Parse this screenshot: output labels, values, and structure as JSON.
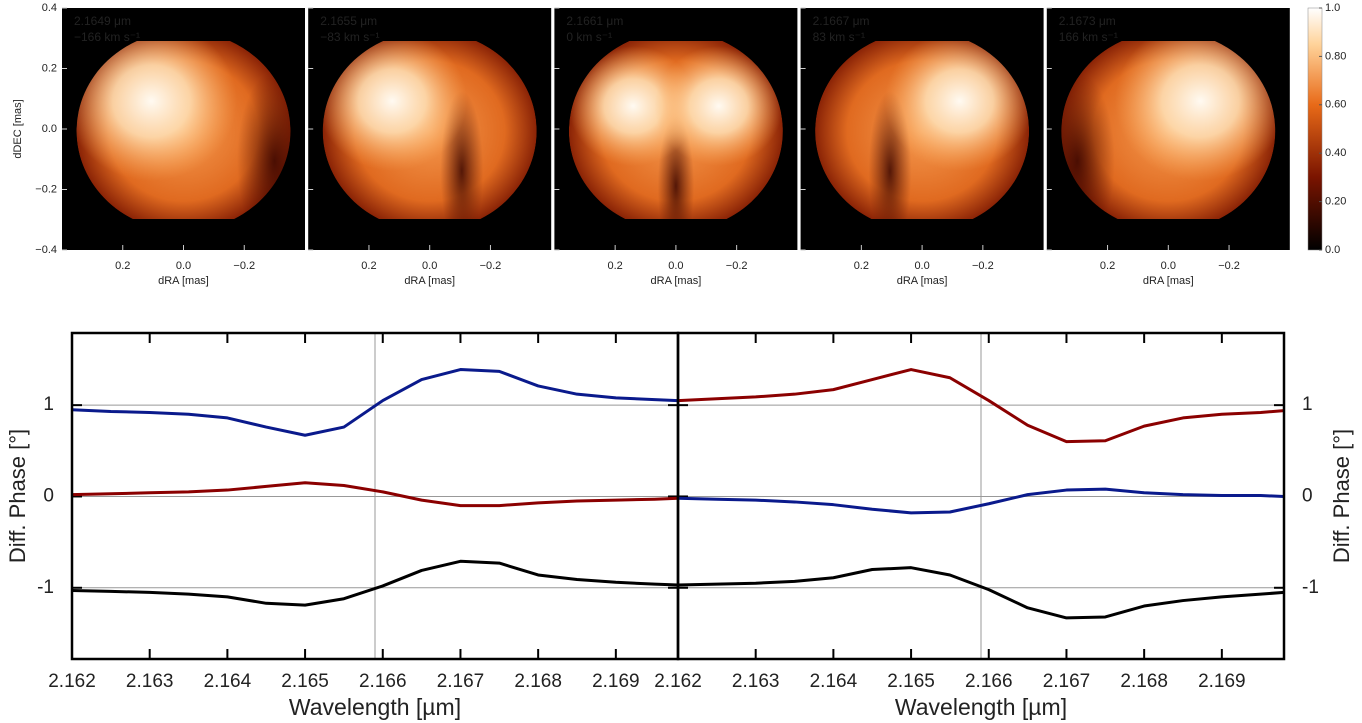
{
  "chart_data": [
    {
      "type": "image",
      "title": [
        "2.1649 μm",
        "−166 km s⁻¹"
      ],
      "xlabel": "dRA [mas]",
      "ylabel": "dDEC [mas]",
      "xlim": [
        0.4,
        -0.4
      ],
      "ylim": [
        -0.4,
        0.4
      ],
      "xticks": [
        0.2,
        {
          "value": 0,
          "label": "0.0"
        },
        {
          "value": -0.2,
          "label": "−0.2"
        }
      ],
      "yticks": [
        0.4,
        0.2,
        {
          "value": 0,
          "label": "0.0"
        },
        {
          "value": -0.2,
          "label": "−0.2"
        },
        {
          "value": -0.4,
          "label": "−0.4"
        }
      ]
    },
    {
      "type": "image",
      "title": [
        "2.1655 μm",
        "−83 km s⁻¹"
      ],
      "xlabel": "dRA [mas]",
      "xlim": [
        0.4,
        -0.4
      ],
      "ylim": [
        -0.4,
        0.4
      ],
      "xticks": [
        0.2,
        {
          "value": 0,
          "label": "0.0"
        },
        {
          "value": -0.2,
          "label": "−0.2"
        }
      ]
    },
    {
      "type": "image",
      "title": [
        "2.1661 μm",
        "0 km s⁻¹"
      ],
      "xlabel": "dRA [mas]",
      "xlim": [
        0.4,
        -0.4
      ],
      "ylim": [
        -0.4,
        0.4
      ],
      "xticks": [
        0.2,
        {
          "value": 0,
          "label": "0.0"
        },
        {
          "value": -0.2,
          "label": "−0.2"
        }
      ]
    },
    {
      "type": "image",
      "title": [
        "2.1667 μm",
        "83 km s⁻¹"
      ],
      "xlabel": "dRA [mas]",
      "xlim": [
        0.4,
        -0.4
      ],
      "ylim": [
        -0.4,
        0.4
      ],
      "xticks": [
        0.2,
        {
          "value": 0,
          "label": "0.0"
        },
        {
          "value": -0.2,
          "label": "−0.2"
        }
      ]
    },
    {
      "type": "image",
      "title": [
        "2.1673 μm",
        "166 km s⁻¹"
      ],
      "xlabel": "dRA [mas]",
      "xlim": [
        0.4,
        -0.4
      ],
      "ylim": [
        -0.4,
        0.4
      ],
      "xticks": [
        0.2,
        {
          "value": 0,
          "label": "0.0"
        },
        {
          "value": -0.2,
          "label": "−0.2"
        }
      ]
    },
    {
      "type": "colorbar",
      "ylim": [
        0,
        1
      ],
      "yticks": [
        {
          "value": 0,
          "label": "0.0"
        },
        {
          "value": 0.2,
          "label": "0.20"
        },
        {
          "value": 0.4,
          "label": "0.40"
        },
        {
          "value": 0.6,
          "label": "0.60"
        },
        {
          "value": 0.8,
          "label": "0.80"
        },
        {
          "value": 1,
          "label": "1.0"
        }
      ]
    },
    {
      "type": "line",
      "xlabel": "Wavelength [µm]",
      "ylabel": "Diff. Phase [°]",
      "yaxis": "left",
      "grid": true,
      "vline": 2.1659,
      "x": [
        2.162,
        2.1625,
        2.163,
        2.1635,
        2.164,
        2.1645,
        2.165,
        2.1655,
        2.166,
        2.1665,
        2.167,
        2.1675,
        2.168,
        2.1685,
        2.169,
        2.1695,
        2.1698
      ],
      "xlim": [
        2.162,
        2.1698
      ],
      "ylim": [
        -1.78,
        1.79
      ],
      "xticks": [
        2.162,
        2.163,
        2.164,
        2.165,
        2.166,
        2.167,
        2.168,
        2.169
      ],
      "yticks": [
        1,
        0,
        -1
      ],
      "series": [
        {
          "color": "#0a1a8c",
          "values": [
            0.95,
            0.93,
            0.92,
            0.9,
            0.86,
            0.76,
            0.67,
            0.76,
            1.05,
            1.28,
            1.39,
            1.37,
            1.21,
            1.12,
            1.08,
            1.06,
            1.05
          ]
        },
        {
          "color": "#8b0000",
          "values": [
            0.02,
            0.03,
            0.04,
            0.05,
            0.07,
            0.11,
            0.15,
            0.12,
            0.05,
            -0.04,
            -0.1,
            -0.1,
            -0.07,
            -0.05,
            -0.04,
            -0.03,
            -0.02
          ]
        },
        {
          "color": "#000000",
          "values": [
            -1.03,
            -1.04,
            -1.05,
            -1.07,
            -1.1,
            -1.17,
            -1.19,
            -1.12,
            -0.98,
            -0.81,
            -0.71,
            -0.73,
            -0.86,
            -0.91,
            -0.94,
            -0.96,
            -0.97
          ]
        }
      ]
    },
    {
      "type": "line",
      "xlabel": "Wavelength [µm]",
      "ylabel": "Diff. Phase [°]",
      "yaxis": "right",
      "grid": true,
      "vline": 2.1659,
      "x": [
        2.162,
        2.1625,
        2.163,
        2.1635,
        2.164,
        2.1645,
        2.165,
        2.1655,
        2.166,
        2.1665,
        2.167,
        2.1675,
        2.168,
        2.1685,
        2.169,
        2.1695,
        2.1698
      ],
      "xlim": [
        2.162,
        2.1698
      ],
      "ylim": [
        -1.78,
        1.79
      ],
      "xticks": [
        2.162,
        2.163,
        2.164,
        2.165,
        2.166,
        2.167,
        2.168,
        2.169
      ],
      "yticks": [
        1,
        0,
        -1
      ],
      "series": [
        {
          "color": "#8b0000",
          "values": [
            1.05,
            1.07,
            1.09,
            1.12,
            1.17,
            1.28,
            1.39,
            1.3,
            1.05,
            0.78,
            0.6,
            0.61,
            0.77,
            0.86,
            0.9,
            0.92,
            0.94
          ]
        },
        {
          "color": "#0a1a8c",
          "values": [
            -0.02,
            -0.03,
            -0.04,
            -0.06,
            -0.09,
            -0.14,
            -0.18,
            -0.17,
            -0.08,
            0.02,
            0.07,
            0.08,
            0.04,
            0.02,
            0.01,
            0.01,
            0
          ]
        },
        {
          "color": "#000000",
          "values": [
            -0.97,
            -0.96,
            -0.95,
            -0.93,
            -0.89,
            -0.8,
            -0.78,
            -0.86,
            -1.02,
            -1.22,
            -1.33,
            -1.32,
            -1.2,
            -1.14,
            -1.1,
            -1.07,
            -1.05
          ]
        }
      ]
    }
  ]
}
